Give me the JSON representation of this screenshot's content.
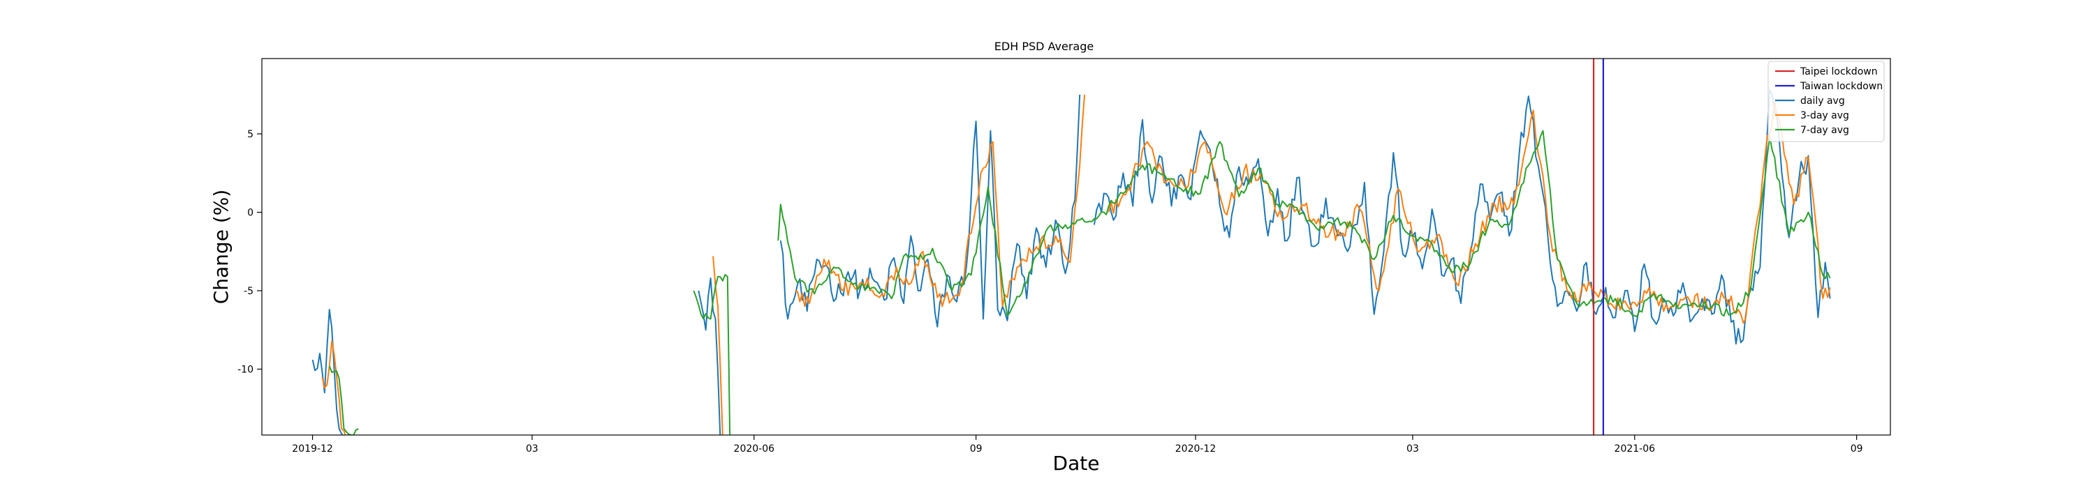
{
  "chart_data": {
    "type": "line",
    "title": "EDH PSD Average",
    "xlabel": "Date",
    "ylabel": "Change (%)",
    "x_axis": {
      "type": "date",
      "range": [
        "2019-11-10",
        "2021-09-15"
      ],
      "ticks": [
        {
          "date": "2019-12-01",
          "label": "2019-12"
        },
        {
          "date": "2020-03-01",
          "label": "03"
        },
        {
          "date": "2020-06-01",
          "label": "2020-06"
        },
        {
          "date": "2020-09-01",
          "label": "09"
        },
        {
          "date": "2020-12-01",
          "label": "2020-12"
        },
        {
          "date": "2021-03-01",
          "label": "03"
        },
        {
          "date": "2021-06-01",
          "label": "2021-06"
        },
        {
          "date": "2021-09-01",
          "label": "09"
        }
      ]
    },
    "y_axis": {
      "range": [
        -14.2,
        9.8
      ],
      "ticks": [
        {
          "value": 5,
          "label": "5"
        },
        {
          "value": 0,
          "label": "0"
        },
        {
          "value": -5,
          "label": "-5"
        },
        {
          "value": -10,
          "label": "-10"
        }
      ]
    },
    "grid": false,
    "legend_position": "top-right",
    "vertical_lines": [
      {
        "name": "Taipei lockdown",
        "date": "2021-05-15",
        "color": "#d62728"
      },
      {
        "name": "Taiwan lockdown",
        "date": "2021-05-19",
        "color": "#1f1fd6"
      }
    ],
    "series": [
      {
        "name": "daily avg",
        "color": "#1f77b4",
        "anchors": [
          [
            "2019-12-01",
            -9.4
          ],
          [
            "2019-12-04",
            -9.0
          ],
          [
            "2019-12-06",
            -11.5
          ],
          [
            "2019-12-08",
            -6.2
          ],
          [
            "2019-12-10",
            -10.0
          ],
          [
            "2019-12-12",
            -13.8
          ],
          [
            "2019-12-14",
            -14.4
          ],
          null,
          [
            "2020-05-09",
            -5.0
          ],
          [
            "2020-05-12",
            -7.5
          ],
          [
            "2020-05-14",
            -4.2
          ],
          [
            "2020-05-16",
            -6.8
          ],
          [
            "2020-05-18",
            -14.4
          ],
          null,
          [
            "2020-06-12",
            -1.8
          ],
          [
            "2020-06-15",
            -6.8
          ],
          [
            "2020-06-19",
            -4.6
          ],
          [
            "2020-06-23",
            -6.3
          ],
          [
            "2020-06-27",
            -3.0
          ],
          [
            "2020-07-01",
            -3.4
          ],
          [
            "2020-07-05",
            -5.5
          ],
          [
            "2020-07-10",
            -3.8
          ],
          [
            "2020-07-15",
            -4.9
          ],
          [
            "2020-07-20",
            -4.2
          ],
          [
            "2020-07-25",
            -5.6
          ],
          [
            "2020-07-29",
            -2.9
          ],
          [
            "2020-08-02",
            -5.8
          ],
          [
            "2020-08-05",
            -1.5
          ],
          [
            "2020-08-08",
            -5.0
          ],
          [
            "2020-08-12",
            -3.0
          ],
          [
            "2020-08-16",
            -7.3
          ],
          [
            "2020-08-20",
            -4.0
          ],
          [
            "2020-08-24",
            -5.7
          ],
          [
            "2020-08-28",
            -3.5
          ],
          [
            "2020-09-01",
            5.8
          ],
          [
            "2020-09-04",
            -6.8
          ],
          [
            "2020-09-07",
            5.2
          ],
          [
            "2020-09-10",
            -6.2
          ],
          [
            "2020-09-14",
            -6.9
          ],
          [
            "2020-09-18",
            -2.0
          ],
          [
            "2020-09-22",
            -5.5
          ],
          [
            "2020-09-26",
            -1.0
          ],
          [
            "2020-09-30",
            -3.5
          ],
          [
            "2020-10-04",
            -0.5
          ],
          [
            "2020-10-08",
            -3.9
          ],
          [
            "2020-10-12",
            0.8
          ],
          [
            "2020-10-14",
            7.5
          ],
          null,
          [
            "2020-10-20",
            -0.8
          ],
          [
            "2020-10-24",
            1.2
          ],
          [
            "2020-10-28",
            -0.5
          ],
          [
            "2020-11-01",
            2.5
          ],
          [
            "2020-11-05",
            0.4
          ],
          [
            "2020-11-09",
            5.9
          ],
          [
            "2020-11-13",
            0.6
          ],
          [
            "2020-11-17",
            3.5
          ],
          [
            "2020-11-21",
            0.4
          ],
          [
            "2020-11-25",
            2.4
          ],
          [
            "2020-11-29",
            0.8
          ],
          [
            "2020-12-03",
            5.2
          ],
          [
            "2020-12-07",
            4.0
          ],
          [
            "2020-12-11",
            0.5
          ],
          [
            "2020-12-15",
            -1.6
          ],
          [
            "2020-12-19",
            2.9
          ],
          [
            "2020-12-23",
            1.8
          ],
          [
            "2020-12-27",
            3.4
          ],
          [
            "2020-12-31",
            -1.5
          ],
          [
            "2021-01-04",
            1.5
          ],
          [
            "2021-01-08",
            -1.8
          ],
          [
            "2021-01-12",
            2.2
          ],
          [
            "2021-01-16",
            -0.5
          ],
          [
            "2021-01-20",
            -2.1
          ],
          [
            "2021-01-24",
            0.9
          ],
          [
            "2021-01-28",
            -1.0
          ],
          [
            "2021-02-01",
            -2.2
          ],
          [
            "2021-02-05",
            -0.8
          ],
          [
            "2021-02-09",
            1.9
          ],
          [
            "2021-02-13",
            -6.5
          ],
          [
            "2021-02-17",
            -2.5
          ],
          [
            "2021-02-21",
            3.8
          ],
          [
            "2021-02-25",
            -2.7
          ],
          [
            "2021-03-01",
            -1.5
          ],
          [
            "2021-03-05",
            -3.6
          ],
          [
            "2021-03-09",
            0.2
          ],
          [
            "2021-03-13",
            -4.0
          ],
          [
            "2021-03-17",
            -3.0
          ],
          [
            "2021-03-21",
            -5.8
          ],
          [
            "2021-03-25",
            -2.5
          ],
          [
            "2021-03-29",
            1.8
          ],
          [
            "2021-04-02",
            -0.5
          ],
          [
            "2021-04-06",
            1.2
          ],
          [
            "2021-04-10",
            -1.5
          ],
          [
            "2021-04-14",
            3.5
          ],
          [
            "2021-04-18",
            7.4
          ],
          [
            "2021-04-22",
            3.0
          ],
          [
            "2021-04-26",
            -1.5
          ],
          [
            "2021-04-30",
            -6.0
          ],
          [
            "2021-05-04",
            -5.0
          ],
          [
            "2021-05-08",
            -6.3
          ],
          [
            "2021-05-12",
            -3.2
          ],
          [
            "2021-05-16",
            -6.5
          ],
          [
            "2021-05-20",
            -4.8
          ],
          [
            "2021-05-24",
            -6.7
          ],
          [
            "2021-05-28",
            -5.0
          ],
          [
            "2021-06-01",
            -7.6
          ],
          [
            "2021-06-05",
            -3.3
          ],
          [
            "2021-06-09",
            -6.9
          ],
          [
            "2021-06-13",
            -5.5
          ],
          [
            "2021-06-17",
            -6.6
          ],
          [
            "2021-06-21",
            -4.5
          ],
          [
            "2021-06-25",
            -6.8
          ],
          [
            "2021-06-29",
            -5.5
          ],
          [
            "2021-07-03",
            -6.5
          ],
          [
            "2021-07-07",
            -4.0
          ],
          [
            "2021-07-11",
            -7.0
          ],
          [
            "2021-07-15",
            -8.3
          ],
          [
            "2021-07-19",
            -4.8
          ],
          [
            "2021-07-23",
            -3.5
          ],
          [
            "2021-07-27",
            7.8
          ],
          [
            "2021-07-31",
            4.5
          ],
          [
            "2021-08-04",
            -1.6
          ],
          [
            "2021-08-08",
            2.0
          ],
          [
            "2021-08-12",
            3.6
          ],
          [
            "2021-08-16",
            -6.7
          ],
          [
            "2021-08-19",
            -3.2
          ],
          [
            "2021-08-21",
            -5.5
          ]
        ]
      },
      {
        "name": "3-day avg",
        "color": "#ff7f0e",
        "anchors": [
          [
            "2019-12-05",
            -10.5
          ],
          [
            "2019-12-07",
            -11.0
          ],
          [
            "2019-12-09",
            -8.2
          ],
          [
            "2019-12-11",
            -10.5
          ],
          [
            "2019-12-13",
            -13.8
          ],
          [
            "2019-12-15",
            -14.4
          ],
          null,
          [
            "2020-05-15",
            -2.8
          ],
          [
            "2020-05-17",
            -6.0
          ],
          [
            "2020-05-19",
            -14.4
          ],
          null,
          [
            "2020-06-18",
            -5.0
          ],
          [
            "2020-06-24",
            -5.8
          ],
          [
            "2020-06-30",
            -3.0
          ],
          [
            "2020-07-08",
            -5.0
          ],
          [
            "2020-07-16",
            -4.5
          ],
          [
            "2020-07-24",
            -5.2
          ],
          [
            "2020-07-30",
            -3.5
          ],
          [
            "2020-08-04",
            -4.6
          ],
          [
            "2020-08-10",
            -2.5
          ],
          [
            "2020-08-18",
            -6.0
          ],
          [
            "2020-08-26",
            -4.6
          ],
          [
            "2020-09-03",
            2.5
          ],
          [
            "2020-09-08",
            4.5
          ],
          [
            "2020-09-12",
            -6.0
          ],
          [
            "2020-09-18",
            -3.5
          ],
          [
            "2020-09-26",
            -2.2
          ],
          [
            "2020-10-04",
            -1.5
          ],
          [
            "2020-10-10",
            -3.2
          ],
          [
            "2020-10-14",
            3.0
          ],
          [
            "2020-10-16",
            7.5
          ],
          null,
          [
            "2020-10-26",
            0.0
          ],
          [
            "2020-11-03",
            1.5
          ],
          [
            "2020-11-11",
            4.5
          ],
          [
            "2020-11-19",
            2.0
          ],
          [
            "2020-11-27",
            1.5
          ],
          [
            "2020-12-05",
            4.5
          ],
          [
            "2020-12-13",
            0.0
          ],
          [
            "2020-12-21",
            2.6
          ],
          [
            "2020-12-29",
            2.0
          ],
          [
            "2021-01-06",
            -0.5
          ],
          [
            "2021-01-14",
            0.5
          ],
          [
            "2021-01-22",
            -1.0
          ],
          [
            "2021-01-30",
            -1.5
          ],
          [
            "2021-02-07",
            0.2
          ],
          [
            "2021-02-15",
            -5.0
          ],
          [
            "2021-02-23",
            1.5
          ],
          [
            "2021-03-03",
            -2.5
          ],
          [
            "2021-03-11",
            -1.5
          ],
          [
            "2021-03-19",
            -4.5
          ],
          [
            "2021-03-27",
            -2.0
          ],
          [
            "2021-04-04",
            0.5
          ],
          [
            "2021-04-12",
            0.5
          ],
          [
            "2021-04-20",
            6.5
          ],
          [
            "2021-04-28",
            -2.5
          ],
          [
            "2021-05-06",
            -5.5
          ],
          [
            "2021-05-14",
            -4.8
          ],
          [
            "2021-05-22",
            -5.8
          ],
          [
            "2021-05-30",
            -6.2
          ],
          [
            "2021-06-07",
            -4.8
          ],
          [
            "2021-06-15",
            -6.2
          ],
          [
            "2021-06-23",
            -5.4
          ],
          [
            "2021-07-01",
            -6.0
          ],
          [
            "2021-07-09",
            -5.5
          ],
          [
            "2021-07-17",
            -6.8
          ],
          [
            "2021-07-25",
            3.5
          ],
          [
            "2021-07-29",
            7.0
          ],
          [
            "2021-08-06",
            0.5
          ],
          [
            "2021-08-12",
            3.5
          ],
          [
            "2021-08-18",
            -5.5
          ],
          [
            "2021-08-21",
            -4.8
          ]
        ]
      },
      {
        "name": "7-day avg",
        "color": "#2ca02c",
        "anchors": [
          [
            "2019-12-08",
            -9.8
          ],
          [
            "2019-12-12",
            -10.6
          ],
          [
            "2019-12-14",
            -13.8
          ],
          [
            "2019-12-17",
            -14.2
          ],
          [
            "2019-12-20",
            -13.8
          ],
          null,
          [
            "2020-05-07",
            -5.0
          ],
          [
            "2020-05-10",
            -6.5
          ],
          [
            "2020-05-14",
            -6.8
          ],
          [
            "2020-05-17",
            -4.1
          ],
          [
            "2020-05-21",
            -4.1
          ],
          [
            "2020-05-22",
            -14.4
          ],
          null,
          [
            "2020-06-11",
            -1.8
          ],
          [
            "2020-06-12",
            0.5
          ],
          [
            "2020-06-18",
            -4.2
          ],
          [
            "2020-06-26",
            -5.2
          ],
          [
            "2020-07-04",
            -3.5
          ],
          [
            "2020-07-12",
            -4.6
          ],
          [
            "2020-07-20",
            -4.8
          ],
          [
            "2020-07-28",
            -5.5
          ],
          [
            "2020-08-02",
            -2.8
          ],
          [
            "2020-08-08",
            -3.0
          ],
          [
            "2020-08-14",
            -2.3
          ],
          [
            "2020-08-22",
            -5.0
          ],
          [
            "2020-08-30",
            -4.0
          ],
          [
            "2020-09-06",
            1.6
          ],
          [
            "2020-09-14",
            -6.6
          ],
          [
            "2020-09-22",
            -4.5
          ],
          [
            "2020-09-30",
            -1.2
          ],
          [
            "2020-10-08",
            -0.8
          ],
          [
            "2020-10-16",
            -0.6
          ],
          [
            "2020-10-24",
            0.0
          ],
          [
            "2020-11-01",
            1.2
          ],
          [
            "2020-11-09",
            3.0
          ],
          [
            "2020-11-17",
            2.4
          ],
          [
            "2020-11-25",
            1.5
          ],
          [
            "2020-12-03",
            1.2
          ],
          [
            "2020-12-11",
            4.5
          ],
          [
            "2020-12-19",
            1.0
          ],
          [
            "2020-12-27",
            2.8
          ],
          [
            "2021-01-04",
            0.5
          ],
          [
            "2021-01-12",
            0.3
          ],
          [
            "2021-01-20",
            -1.0
          ],
          [
            "2021-01-28",
            -0.5
          ],
          [
            "2021-02-05",
            -1.0
          ],
          [
            "2021-02-13",
            -3.0
          ],
          [
            "2021-02-21",
            -0.2
          ],
          [
            "2021-03-01",
            -1.5
          ],
          [
            "2021-03-09",
            -2.0
          ],
          [
            "2021-03-17",
            -3.8
          ],
          [
            "2021-03-25",
            -3.2
          ],
          [
            "2021-04-02",
            -0.5
          ],
          [
            "2021-04-10",
            -0.8
          ],
          [
            "2021-04-18",
            3.0
          ],
          [
            "2021-04-24",
            5.2
          ],
          [
            "2021-04-30",
            -3.0
          ],
          [
            "2021-05-08",
            -5.8
          ],
          [
            "2021-05-16",
            -5.7
          ],
          [
            "2021-05-24",
            -5.5
          ],
          [
            "2021-06-01",
            -6.6
          ],
          [
            "2021-06-09",
            -5.2
          ],
          [
            "2021-06-17",
            -6.0
          ],
          [
            "2021-06-25",
            -5.8
          ],
          [
            "2021-07-03",
            -6.0
          ],
          [
            "2021-07-11",
            -6.5
          ],
          [
            "2021-07-19",
            -5.0
          ],
          [
            "2021-07-27",
            4.8
          ],
          [
            "2021-08-04",
            -1.4
          ],
          [
            "2021-08-12",
            0.0
          ],
          [
            "2021-08-18",
            -4.0
          ],
          [
            "2021-08-21",
            -4.2
          ]
        ]
      }
    ]
  }
}
